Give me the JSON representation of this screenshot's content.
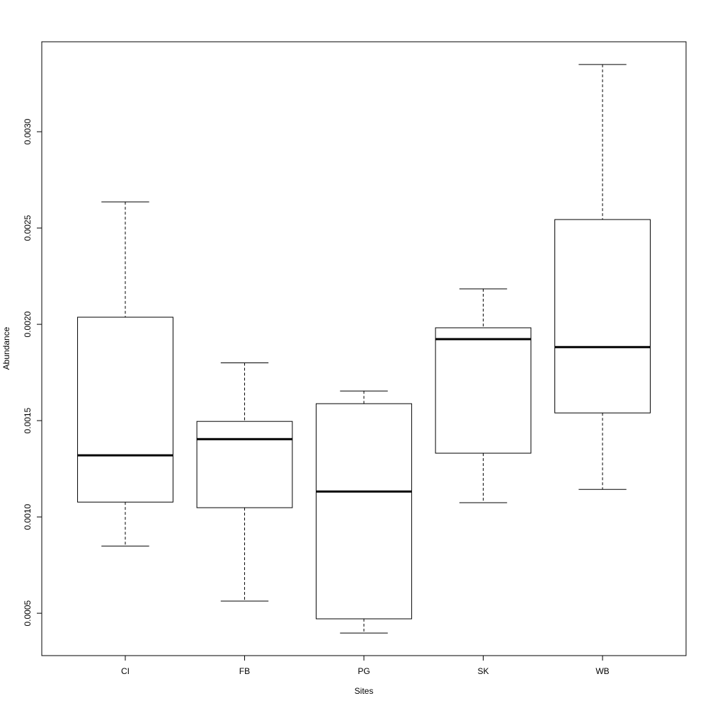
{
  "chart_data": {
    "type": "boxplot",
    "x_label": "Sites",
    "y_label": "Abundance",
    "categories": [
      "CI",
      "FB",
      "PG",
      "SK",
      "WB"
    ],
    "boxes": [
      {
        "min": 0.000849,
        "q1": 0.001077,
        "median": 0.00132,
        "q3": 0.002037,
        "max": 0.002636
      },
      {
        "min": 0.000563,
        "q1": 0.001048,
        "median": 0.001404,
        "q3": 0.001496,
        "max": 0.0018
      },
      {
        "min": 0.000397,
        "q1": 0.000471,
        "median": 0.001132,
        "q3": 0.001588,
        "max": 0.001654
      },
      {
        "min": 0.001074,
        "q1": 0.001331,
        "median": 0.001923,
        "q3": 0.001982,
        "max": 0.002184
      },
      {
        "min": 0.001143,
        "q1": 0.00154,
        "median": 0.001882,
        "q3": 0.002544,
        "max": 0.003349
      }
    ],
    "ylim": [
      0.00028,
      0.003467
    ],
    "yticks": [
      {
        "value": 0.0005,
        "label": "0.0005"
      },
      {
        "value": 0.001,
        "label": "0.0010"
      },
      {
        "value": 0.0015,
        "label": "0.0015"
      },
      {
        "value": 0.002,
        "label": "0.0020"
      },
      {
        "value": 0.0025,
        "label": "0.0025"
      },
      {
        "value": 0.003,
        "label": "0.0030"
      }
    ],
    "color": "#000000",
    "box_fill": "#ffffff",
    "grid": false
  }
}
